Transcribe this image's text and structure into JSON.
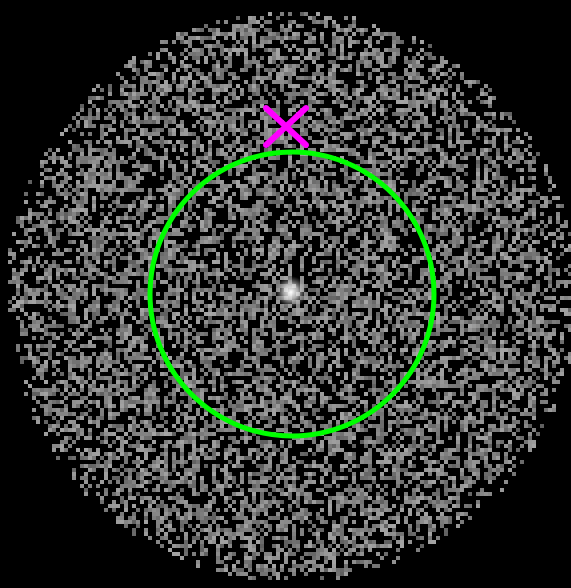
{
  "image": {
    "kind": "x-ray counts image",
    "background_color": "#000000",
    "noise_color": "#8a8a8a"
  },
  "overlays": {
    "region_circle": {
      "shape": "circle",
      "color": "#00ff00"
    },
    "marker": {
      "shape": "x-cross",
      "color": "#ff00ff"
    }
  },
  "source": {
    "shape": "bright-point",
    "color": "#ffffff"
  }
}
